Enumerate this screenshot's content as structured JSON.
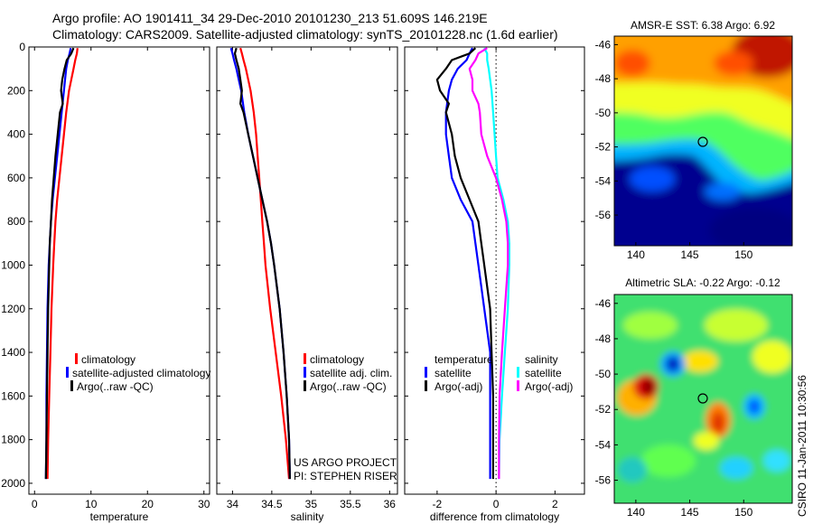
{
  "header": {
    "line1": "Argo profile: AO 1901411_34 29-Dec-2010 20101230_213 51.609S 146.219E",
    "line2": "Climatology: CARS2009. Satellite-adjusted climatology: synTS_20101228.nc (1.6d earlier)"
  },
  "side_label": "CSIRO 11-Jan-2011 10:30:56",
  "project_note": [
    "US ARGO PROJECT",
    "PI: STEPHEN RISER"
  ],
  "colors": {
    "climatology": "#ff0000",
    "satellite": "#0000ff",
    "argo": "#000000",
    "sal_diff": "#00ffff",
    "sal_argo": "#ff00ff"
  },
  "chart_data": [
    {
      "id": "temperature",
      "type": "line",
      "xlabel": "temperature",
      "xlim": [
        -1,
        31
      ],
      "ylim": [
        2050,
        0
      ],
      "xticks": [
        0,
        10,
        20,
        30
      ],
      "yticks": [
        0,
        200,
        400,
        600,
        800,
        1000,
        1200,
        1400,
        1600,
        1800,
        2000
      ],
      "legend": [
        "climatology",
        "satellite-adjusted climatology",
        "Argo(..raw -QC)"
      ],
      "series": [
        {
          "name": "climatology",
          "color": "#ff0000",
          "depth": [
            5,
            30,
            60,
            100,
            150,
            200,
            300,
            400,
            500,
            600,
            700,
            800,
            900,
            1000,
            1200,
            1400,
            1600,
            1800,
            1980
          ],
          "values": [
            7.6,
            7.5,
            7.2,
            6.9,
            6.5,
            6.1,
            5.6,
            5.2,
            4.8,
            4.4,
            4.0,
            3.7,
            3.5,
            3.3,
            3.0,
            2.8,
            2.6,
            2.4,
            2.3
          ]
        },
        {
          "name": "satellite-adjusted climatology",
          "color": "#0000ff",
          "depth": [
            5,
            30,
            60,
            100,
            150,
            200,
            300,
            400,
            500,
            600,
            700,
            800,
            900,
            1000,
            1200,
            1400,
            1600,
            1800,
            1980
          ],
          "values": [
            6.4,
            6.2,
            5.9,
            5.6,
            5.4,
            5.2,
            4.8,
            4.4,
            4.0,
            3.6,
            3.2,
            2.9,
            2.7,
            2.5,
            2.3,
            2.2,
            2.1,
            2.1,
            2.0
          ]
        },
        {
          "name": "Argo(..raw -QC)",
          "color": "#000000",
          "depth": [
            5,
            30,
            60,
            100,
            150,
            200,
            260,
            300,
            400,
            500,
            600,
            700,
            800,
            900,
            1000,
            1200,
            1400,
            1600,
            1800,
            1980
          ],
          "values": [
            6.9,
            6.5,
            5.7,
            5.3,
            4.9,
            4.7,
            5.0,
            4.5,
            4.1,
            3.7,
            3.4,
            3.1,
            2.9,
            2.7,
            2.6,
            2.4,
            2.3,
            2.2,
            2.1,
            2.0
          ]
        }
      ]
    },
    {
      "id": "salinity",
      "type": "line",
      "xlabel": "salinity",
      "xlim": [
        33.8,
        36.1
      ],
      "ylim": [
        2050,
        0
      ],
      "xticks": [
        34,
        34.5,
        35,
        35.5,
        36
      ],
      "yticks": [
        0,
        200,
        400,
        600,
        800,
        1000,
        1200,
        1400,
        1600,
        1800,
        2000
      ],
      "legend": [
        "climatology",
        "satellite adj. clim.",
        "Argo(..raw -QC)"
      ],
      "series": [
        {
          "name": "climatology",
          "color": "#ff0000",
          "depth": [
            5,
            30,
            60,
            100,
            150,
            200,
            300,
            400,
            500,
            600,
            700,
            800,
            900,
            1000,
            1200,
            1400,
            1600,
            1800,
            1980
          ],
          "values": [
            34.1,
            34.12,
            34.14,
            34.17,
            34.2,
            34.23,
            34.27,
            34.3,
            34.32,
            34.34,
            34.36,
            34.38,
            34.4,
            34.42,
            34.48,
            34.55,
            34.62,
            34.68,
            34.72
          ]
        },
        {
          "name": "satellite adj. clim.",
          "color": "#0000ff",
          "depth": [
            5,
            30,
            60,
            100,
            150,
            200,
            300,
            400,
            500,
            600,
            700,
            800,
            900,
            1000,
            1200,
            1400,
            1600,
            1800,
            1980
          ],
          "values": [
            33.98,
            34.0,
            34.02,
            34.05,
            34.08,
            34.11,
            34.15,
            34.2,
            34.26,
            34.32,
            34.38,
            34.44,
            34.49,
            34.53,
            34.6,
            34.65,
            34.69,
            34.72,
            34.73
          ]
        },
        {
          "name": "Argo(..raw -QC)",
          "color": "#000000",
          "depth": [
            5,
            30,
            60,
            100,
            150,
            200,
            260,
            300,
            400,
            500,
            600,
            700,
            800,
            900,
            1000,
            1200,
            1400,
            1600,
            1800,
            1980
          ],
          "values": [
            34.05,
            34.03,
            34.05,
            34.08,
            34.1,
            34.12,
            34.1,
            34.14,
            34.2,
            34.26,
            34.32,
            34.38,
            34.44,
            34.49,
            34.53,
            34.6,
            34.65,
            34.69,
            34.72,
            34.73
          ]
        }
      ]
    },
    {
      "id": "difference",
      "type": "line",
      "xlabel": "difference from climatology",
      "xlim": [
        -3.1,
        3.0
      ],
      "ylim": [
        2050,
        0
      ],
      "xticks": [
        -2,
        0,
        2
      ],
      "yticks": [
        0,
        200,
        400,
        600,
        800,
        1000,
        1200,
        1400,
        1600,
        1800,
        2000
      ],
      "legend_temperature": [
        "temperature",
        "satellite",
        "Argo(-adj)"
      ],
      "legend_salinity": [
        "salinity",
        "satellite",
        "Argo(-adj)"
      ],
      "series": [
        {
          "name": "satellite",
          "color": "#0000ff",
          "depth": [
            5,
            30,
            60,
            100,
            150,
            200,
            300,
            400,
            500,
            600,
            700,
            800,
            900,
            1000,
            1200,
            1400,
            1600,
            1800,
            1980
          ],
          "values": [
            -0.8,
            -0.9,
            -1.0,
            -1.3,
            -1.5,
            -1.6,
            -1.7,
            -1.7,
            -1.6,
            -1.5,
            -1.2,
            -0.8,
            -0.7,
            -0.6,
            -0.4,
            -0.2,
            -0.2,
            -0.2,
            -0.2
          ]
        },
        {
          "name": "Argo(-adj)",
          "color": "#000000",
          "depth": [
            5,
            30,
            60,
            100,
            150,
            200,
            260,
            300,
            400,
            500,
            600,
            700,
            800,
            900,
            1000,
            1200,
            1400,
            1600,
            1800,
            1980
          ],
          "values": [
            -0.7,
            -0.9,
            -1.5,
            -1.7,
            -2.0,
            -1.9,
            -1.6,
            -1.7,
            -1.5,
            -1.4,
            -1.2,
            -0.9,
            -0.6,
            -0.5,
            -0.4,
            -0.2,
            -0.15,
            -0.1,
            -0.1,
            -0.1
          ]
        },
        {
          "name": "satellite",
          "color": "#00ffff",
          "depth": [
            5,
            30,
            60,
            100,
            150,
            200,
            300,
            400,
            500,
            600,
            700,
            800,
            900,
            1000,
            1200,
            1400,
            1600,
            1800,
            1980
          ],
          "values": [
            -0.4,
            -0.3,
            -0.3,
            -0.25,
            -0.2,
            -0.15,
            -0.1,
            -0.05,
            0.0,
            0.05,
            0.25,
            0.4,
            0.45,
            0.45,
            0.4,
            0.3,
            0.2,
            0.12,
            0.1
          ]
        },
        {
          "name": "Argo(-adj)",
          "color": "#ff00ff",
          "depth": [
            5,
            30,
            60,
            100,
            150,
            200,
            260,
            300,
            400,
            500,
            600,
            700,
            800,
            900,
            1000,
            1200,
            1400,
            1600,
            1800,
            1980
          ],
          "values": [
            -0.3,
            -0.6,
            -0.7,
            -0.9,
            -0.8,
            -0.8,
            -0.6,
            -0.55,
            -0.5,
            -0.3,
            0.0,
            0.2,
            0.35,
            0.4,
            0.4,
            0.3,
            0.2,
            0.12,
            0.1,
            0.1
          ]
        }
      ]
    },
    {
      "id": "sst_map",
      "type": "heatmap",
      "title": "AMSR-E SST: 6.38 Argo: 6.92",
      "xlim": [
        138,
        154.5
      ],
      "ylim": [
        -57.8,
        -45.5
      ],
      "xticks": [
        140,
        145,
        150
      ],
      "yticks": [
        -46,
        -48,
        -50,
        -52,
        -54,
        -56
      ],
      "marker": {
        "lon": 146.2,
        "lat": -51.6
      }
    },
    {
      "id": "sla_map",
      "type": "heatmap",
      "title": "Altimetric SLA: -0.22 Argo: -0.12",
      "xlim": [
        138,
        154.5
      ],
      "ylim": [
        -57.3,
        -45.5
      ],
      "xticks": [
        140,
        145,
        150
      ],
      "yticks": [
        -46,
        -48,
        -50,
        -52,
        -54,
        -56
      ],
      "marker": {
        "lon": 146.2,
        "lat": -51.6
      }
    }
  ]
}
